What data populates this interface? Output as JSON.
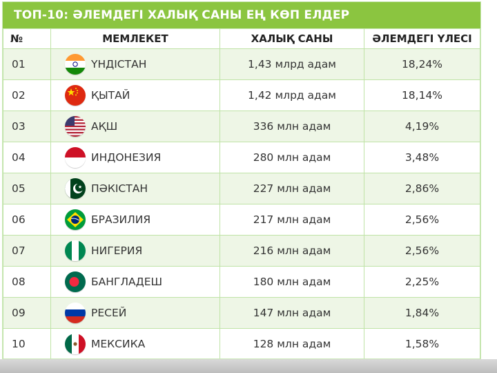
{
  "title": "ТОП-10: ӘЛЕМДЕГІ ХАЛЫҚ САНЫ ЕҢ КӨП ЕЛДЕР",
  "columns": [
    "№",
    "МЕМЛЕКЕТ",
    "ХАЛЫҚ САНЫ",
    "ӘЛЕМДЕГІ ҮЛЕСІ"
  ],
  "rows": [
    {
      "num": "01",
      "country": "ҮНДІСТАН",
      "population": "1,43 млрд адам",
      "share": "18,24%",
      "flag": "india-flag-icon"
    },
    {
      "num": "02",
      "country": "ҚЫТАЙ",
      "population": "1,42 млрд адам",
      "share": "18,14%",
      "flag": "china-flag-icon"
    },
    {
      "num": "03",
      "country": "АҚШ",
      "population": "336 млн адам",
      "share": "4,19%",
      "flag": "usa-flag-icon"
    },
    {
      "num": "04",
      "country": "ИНДОНЕЗИЯ",
      "population": "280 млн адам",
      "share": "3,48%",
      "flag": "indonesia-flag-icon"
    },
    {
      "num": "05",
      "country": "ПӘКІСТАН",
      "population": "227 млн адам",
      "share": "2,86%",
      "flag": "pakistan-flag-icon"
    },
    {
      "num": "06",
      "country": "БРАЗИЛИЯ",
      "population": "217 млн адам",
      "share": "2,56%",
      "flag": "brazil-flag-icon"
    },
    {
      "num": "07",
      "country": "НИГЕРИЯ",
      "population": "216 млн адам",
      "share": "2,56%",
      "flag": "nigeria-flag-icon"
    },
    {
      "num": "08",
      "country": "БАНГЛАДЕШ",
      "population": "180 млн адам",
      "share": "2,25%",
      "flag": "bangladesh-flag-icon"
    },
    {
      "num": "09",
      "country": "РЕСЕЙ",
      "population": "147 млн адам",
      "share": "1,84%",
      "flag": "russia-flag-icon"
    },
    {
      "num": "10",
      "country": "МЕКСИКА",
      "population": "128 млн адам",
      "share": "1,58%",
      "flag": "mexico-flag-icon"
    }
  ],
  "colors": {
    "header_green": "#8bc540",
    "row_tint": "#eef6e6",
    "grid": "#bfe3a6"
  }
}
